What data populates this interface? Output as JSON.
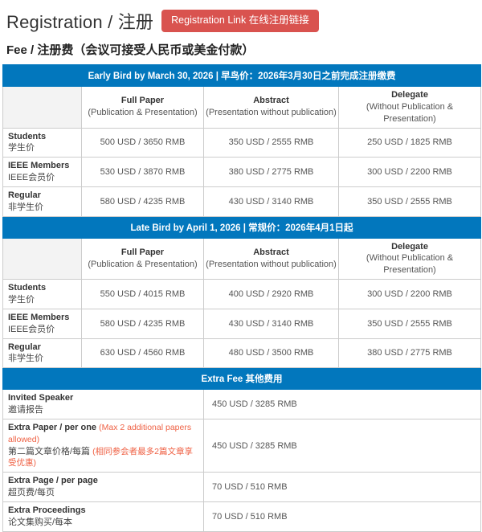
{
  "colors": {
    "accent_blue": "#0277bd",
    "button_red": "#d9534f",
    "note_orange": "#ef6144",
    "border_gray": "#cccccc"
  },
  "header": {
    "title": "Registration / 注册",
    "link_button": "Registration Link 在线注册链接",
    "fee_title": "Fee / 注册费（会议可接受人民币或美金付款）"
  },
  "columns": [
    {
      "name": "Full Paper",
      "desc": "(Publication & Presentation)"
    },
    {
      "name": "Abstract",
      "desc": "(Presentation without publication)"
    },
    {
      "name": "Delegate",
      "desc": "(Without Publication & Presentation)"
    }
  ],
  "early_bird": {
    "header": "Early Bird by March 30, 2026 | 早鸟价：2026年3月30日之前完成注册缴费",
    "rows": [
      {
        "label_en": "Students",
        "label_zh": "学生价",
        "prices": [
          "500 USD / 3650 RMB",
          "350 USD / 2555 RMB",
          "250 USD / 1825 RMB"
        ]
      },
      {
        "label_en": "IEEE Members",
        "label_zh": "IEEE会员价",
        "prices": [
          "530 USD / 3870 RMB",
          "380 USD / 2775 RMB",
          "300 USD / 2200 RMB"
        ]
      },
      {
        "label_en": "Regular",
        "label_zh": "非学生价",
        "prices": [
          "580 USD / 4235 RMB",
          "430 USD / 3140 RMB",
          "350 USD / 2555 RMB"
        ]
      }
    ]
  },
  "late_bird": {
    "header": "Late Bird by April 1, 2026 | 常规价：2026年4月1日起",
    "rows": [
      {
        "label_en": "Students",
        "label_zh": "学生价",
        "prices": [
          "550 USD / 4015 RMB",
          "400 USD / 2920 RMB",
          "300 USD / 2200 RMB"
        ]
      },
      {
        "label_en": "IEEE Members",
        "label_zh": "IEEE会员价",
        "prices": [
          "580 USD / 4235 RMB",
          "430 USD / 3140 RMB",
          "350 USD / 2555 RMB"
        ]
      },
      {
        "label_en": "Regular",
        "label_zh": "非学生价",
        "prices": [
          "630 USD / 4560 RMB",
          "480 USD / 3500 RMB",
          "380 USD / 2775 RMB"
        ]
      }
    ]
  },
  "extra_fee": {
    "header": "Extra Fee 其他费用",
    "rows": [
      {
        "label_en": "Invited Speaker",
        "note_en": "",
        "label_zh": "邀请报告",
        "note_zh": "",
        "price": "450 USD / 3285 RMB"
      },
      {
        "label_en": "Extra Paper / per one",
        "note_en": "(Max 2 additional papers allowed)",
        "label_zh": "第二篇文章价格/每篇",
        "note_zh": "(相同参会者最多2篇文章享受优惠)",
        "price": "450 USD / 3285 RMB"
      },
      {
        "label_en": "Extra Page / per page",
        "note_en": "",
        "label_zh": "超页费/每页",
        "note_zh": "",
        "price": "70 USD / 510 RMB"
      },
      {
        "label_en": "Extra Proceedings",
        "note_en": "",
        "label_zh": "论文集购买/每本",
        "note_zh": "",
        "price": "70 USD / 510 RMB"
      }
    ]
  }
}
